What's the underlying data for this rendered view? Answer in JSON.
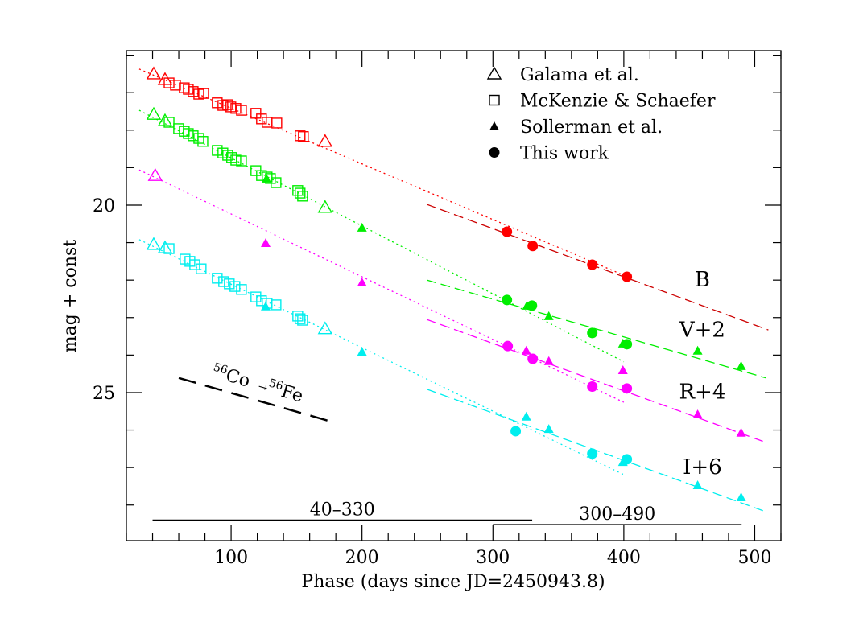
{
  "chart_data": {
    "type": "scatter",
    "xlabel": "Phase (days since JD=2450943.8)",
    "ylabel": "mag + const",
    "xlim": [
      20,
      520
    ],
    "ylim": [
      15.88,
      28.95
    ],
    "y_inverted": true,
    "x_ticks": [
      100,
      200,
      300,
      400,
      500
    ],
    "x_minor_step": 20,
    "y_ticks": [
      20,
      25
    ],
    "y_minor_step": 1,
    "grid": false,
    "legend_position": "top-right",
    "legend": [
      {
        "label": "Galama et al.",
        "marker": "open-triangle"
      },
      {
        "label": "McKenzie & Schaefer",
        "marker": "open-square"
      },
      {
        "label": "Sollerman et al.",
        "marker": "filled-triangle"
      },
      {
        "label": "This work",
        "marker": "filled-circle"
      }
    ],
    "band_colors": {
      "B": "#ff0000",
      "V+2": "#00ee00",
      "R+4": "#ff00ff",
      "I+6": "#00eeee"
    },
    "band_labels": [
      {
        "text": "B",
        "x": 460,
        "y": 21.95
      },
      {
        "text": "V+2",
        "x": 460,
        "y": 23.3
      },
      {
        "text": "R+4",
        "x": 460,
        "y": 24.95
      },
      {
        "text": "I+6",
        "x": 460,
        "y": 26.95
      }
    ],
    "series": [
      {
        "source": "Galama et al.",
        "band": "B",
        "marker": "open-triangle",
        "points": [
          [
            40.9,
            16.5
          ],
          [
            49.5,
            16.65
          ],
          [
            171.8,
            18.3
          ]
        ]
      },
      {
        "source": "Galama et al.",
        "band": "V+2",
        "marker": "open-triangle",
        "points": [
          [
            40.9,
            17.58
          ],
          [
            49.5,
            17.75
          ],
          [
            171.8,
            20.06
          ]
        ]
      },
      {
        "source": "Galama et al.",
        "band": "R+4",
        "marker": "open-triangle",
        "points": [
          [
            42,
            19.21
          ]
        ]
      },
      {
        "source": "Galama et al.",
        "band": "I+6",
        "marker": "open-triangle",
        "points": [
          [
            40.9,
            21.05
          ],
          [
            49.5,
            21.14
          ],
          [
            171.8,
            23.3
          ]
        ]
      },
      {
        "source": "McKenzie & Schaefer",
        "band": "B",
        "marker": "open-square",
        "points": [
          [
            52.6,
            16.74
          ],
          [
            57.5,
            16.8
          ],
          [
            64.2,
            16.87
          ],
          [
            67.3,
            16.91
          ],
          [
            71,
            16.97
          ],
          [
            75.3,
            17.04
          ],
          [
            79,
            17.02
          ],
          [
            89.4,
            17.27
          ],
          [
            93.7,
            17.34
          ],
          [
            97.4,
            17.32
          ],
          [
            99.8,
            17.38
          ],
          [
            103.6,
            17.42
          ],
          [
            107.9,
            17.47
          ],
          [
            118.9,
            17.55
          ],
          [
            123.2,
            17.7
          ],
          [
            127.5,
            17.79
          ],
          [
            134.9,
            17.81
          ],
          [
            152.7,
            18.15
          ],
          [
            155.2,
            18.17
          ]
        ]
      },
      {
        "source": "McKenzie & Schaefer",
        "band": "V+2",
        "marker": "open-square",
        "points": [
          [
            52.6,
            17.79
          ],
          [
            59.9,
            17.96
          ],
          [
            64.2,
            18.03
          ],
          [
            67.3,
            18.09
          ],
          [
            71,
            18.15
          ],
          [
            75.3,
            18.22
          ],
          [
            78.4,
            18.3
          ],
          [
            89.4,
            18.54
          ],
          [
            93.7,
            18.61
          ],
          [
            97.4,
            18.67
          ],
          [
            100.4,
            18.73
          ],
          [
            103.6,
            18.8
          ],
          [
            107.9,
            18.82
          ],
          [
            118.9,
            19.08
          ],
          [
            123.2,
            19.21
          ],
          [
            127.5,
            19.25
          ],
          [
            130,
            19.29
          ],
          [
            134.3,
            19.4
          ],
          [
            150.9,
            19.61
          ],
          [
            152.7,
            19.68
          ],
          [
            154.6,
            19.76
          ]
        ]
      },
      {
        "source": "McKenzie & Schaefer",
        "band": "I+6",
        "marker": "open-square",
        "points": [
          [
            52.6,
            21.16
          ],
          [
            64.8,
            21.44
          ],
          [
            68.5,
            21.5
          ],
          [
            72.2,
            21.59
          ],
          [
            77.1,
            21.7
          ],
          [
            89.4,
            21.95
          ],
          [
            94.3,
            22.04
          ],
          [
            98.6,
            22.1
          ],
          [
            102.9,
            22.17
          ],
          [
            107.9,
            22.25
          ],
          [
            118.9,
            22.45
          ],
          [
            123.2,
            22.55
          ],
          [
            127.5,
            22.62
          ],
          [
            134.3,
            22.66
          ],
          [
            150.9,
            22.96
          ],
          [
            152.7,
            23.03
          ],
          [
            154.6,
            23.07
          ]
        ]
      },
      {
        "source": "Sollerman et al.",
        "band": "V+2",
        "marker": "filled-triangle",
        "points": [
          [
            127,
            19.29
          ],
          [
            200,
            20.6
          ],
          [
            326,
            22.68
          ],
          [
            342.7,
            22.96
          ],
          [
            399.3,
            23.69
          ],
          [
            456.4,
            23.88
          ],
          [
            489.6,
            24.29
          ]
        ]
      },
      {
        "source": "Sollerman et al.",
        "band": "R+4",
        "marker": "filled-triangle",
        "points": [
          [
            126.4,
            21.01
          ],
          [
            200,
            22.06
          ],
          [
            325.5,
            23.88
          ],
          [
            342.7,
            24.16
          ],
          [
            399.3,
            24.4
          ],
          [
            456.4,
            25.58
          ],
          [
            489.6,
            26.07
          ]
        ]
      },
      {
        "source": "Sollerman et al.",
        "band": "I+6",
        "marker": "filled-triangle",
        "points": [
          [
            126.4,
            22.7
          ],
          [
            200,
            23.91
          ],
          [
            325.5,
            25.64
          ],
          [
            342.7,
            25.97
          ],
          [
            399.3,
            26.85
          ],
          [
            456.4,
            27.47
          ],
          [
            489.6,
            27.79
          ]
        ]
      },
      {
        "source": "This work",
        "band": "B",
        "marker": "filled-circle",
        "points": [
          [
            310.7,
            20.71
          ],
          [
            330.4,
            21.09
          ],
          [
            375.9,
            21.59
          ],
          [
            402.3,
            21.91
          ]
        ]
      },
      {
        "source": "This work",
        "band": "V+2",
        "marker": "filled-circle",
        "points": [
          [
            310.7,
            22.53
          ],
          [
            329.8,
            22.68
          ],
          [
            375.9,
            23.41
          ],
          [
            402.3,
            23.71
          ]
        ]
      },
      {
        "source": "This work",
        "band": "R+4",
        "marker": "filled-circle",
        "points": [
          [
            311.3,
            23.76
          ],
          [
            330.4,
            24.1
          ],
          [
            375.9,
            24.84
          ],
          [
            402.3,
            24.89
          ]
        ]
      },
      {
        "source": "This work",
        "band": "I+6",
        "marker": "filled-circle",
        "points": [
          [
            317.4,
            26.03
          ],
          [
            375.9,
            26.63
          ],
          [
            402.3,
            26.78
          ]
        ]
      }
    ],
    "fits": [
      {
        "band": "B",
        "style": "dotted",
        "from": [
          29.8,
          16.37
        ],
        "to": [
          400,
          21.87
        ]
      },
      {
        "band": "V+2",
        "style": "dotted",
        "from": [
          29.8,
          17.47
        ],
        "to": [
          400,
          24.18
        ]
      },
      {
        "band": "R+4",
        "style": "dotted",
        "from": [
          29.8,
          19.06
        ],
        "to": [
          400,
          25.26
        ]
      },
      {
        "band": "I+6",
        "style": "dotted",
        "from": [
          29.8,
          20.92
        ],
        "to": [
          400,
          27.19
        ]
      },
      {
        "band": "B",
        "style": "dashed",
        "from": [
          249.5,
          19.98
        ],
        "to": [
          510.4,
          23.33
        ]
      },
      {
        "band": "V+2",
        "style": "dashed",
        "from": [
          249.5,
          22.0
        ],
        "to": [
          508.6,
          24.61
        ]
      },
      {
        "band": "R+4",
        "style": "dashed",
        "from": [
          249.5,
          23.05
        ],
        "to": [
          508.6,
          26.33
        ]
      },
      {
        "band": "I+6",
        "style": "dashed",
        "from": [
          249.5,
          24.91
        ],
        "to": [
          508.6,
          28.18
        ]
      }
    ],
    "decay_line": {
      "from": [
        60,
        24.61
      ],
      "to": [
        178,
        25.79
      ],
      "label": {
        "mass1": "56",
        "el1": "Co",
        "arrow": "→",
        "mass2": "56",
        "el2": "Fe"
      }
    },
    "ranges": [
      {
        "label": "40–330",
        "from": 40,
        "to": 330,
        "y": 28.4
      },
      {
        "label": "300–490",
        "from": 300,
        "to": 490,
        "y": 28.52
      }
    ]
  }
}
